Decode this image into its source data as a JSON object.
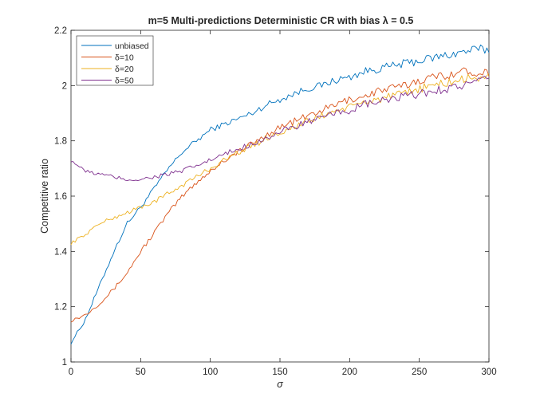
{
  "chart_data": {
    "type": "line",
    "title": "m=5 Multi-predictions Deterministic CR with bias  λ = 0.5",
    "xlabel": "σ",
    "ylabel": "Competitive ratio",
    "xlim": [
      0,
      300
    ],
    "ylim": [
      1,
      2.2
    ],
    "xticks": [
      0,
      50,
      100,
      150,
      200,
      250,
      300
    ],
    "yticks": [
      1,
      1.2,
      1.4,
      1.6,
      1.8,
      2,
      2.2
    ],
    "xtick_labels": [
      "0",
      "50",
      "100",
      "150",
      "200",
      "250",
      "300"
    ],
    "ytick_labels": [
      "1",
      "1.2",
      "1.4",
      "1.6",
      "1.8",
      "2",
      "2.2"
    ],
    "grid": false,
    "legend_position": "top-left",
    "series": [
      {
        "name": "unbiased",
        "color": "#0072BD",
        "x": [
          0,
          10,
          20,
          30,
          40,
          50,
          60,
          70,
          80,
          90,
          100,
          110,
          120,
          130,
          140,
          150,
          160,
          170,
          180,
          190,
          200,
          210,
          220,
          230,
          240,
          250,
          260,
          270,
          280,
          290,
          300
        ],
        "y": [
          1.07,
          1.15,
          1.27,
          1.39,
          1.5,
          1.56,
          1.63,
          1.7,
          1.76,
          1.8,
          1.84,
          1.86,
          1.88,
          1.9,
          1.93,
          1.95,
          1.97,
          1.99,
          2.0,
          2.02,
          2.03,
          2.05,
          2.06,
          2.07,
          2.08,
          2.09,
          2.1,
          2.11,
          2.12,
          2.13,
          2.13
        ]
      },
      {
        "name": "δ=10",
        "color": "#D95319",
        "x": [
          0,
          10,
          20,
          30,
          40,
          50,
          60,
          70,
          80,
          90,
          100,
          110,
          120,
          130,
          140,
          150,
          160,
          170,
          180,
          190,
          200,
          210,
          220,
          230,
          240,
          250,
          260,
          270,
          280,
          290,
          300
        ],
        "y": [
          1.15,
          1.17,
          1.21,
          1.26,
          1.32,
          1.4,
          1.47,
          1.54,
          1.6,
          1.65,
          1.69,
          1.73,
          1.76,
          1.79,
          1.82,
          1.85,
          1.87,
          1.89,
          1.91,
          1.93,
          1.95,
          1.96,
          1.98,
          1.99,
          2.0,
          2.02,
          2.03,
          2.04,
          2.05,
          2.05,
          2.05
        ]
      },
      {
        "name": "δ=20",
        "color": "#EDB120",
        "x": [
          0,
          10,
          20,
          30,
          40,
          50,
          60,
          70,
          80,
          90,
          100,
          110,
          120,
          130,
          140,
          150,
          160,
          170,
          180,
          190,
          200,
          210,
          220,
          230,
          240,
          250,
          260,
          270,
          280,
          290,
          300
        ],
        "y": [
          1.43,
          1.46,
          1.5,
          1.52,
          1.54,
          1.56,
          1.58,
          1.61,
          1.64,
          1.67,
          1.7,
          1.73,
          1.76,
          1.78,
          1.81,
          1.83,
          1.85,
          1.87,
          1.89,
          1.91,
          1.92,
          1.94,
          1.95,
          1.96,
          1.97,
          1.99,
          2.0,
          2.01,
          2.02,
          2.03,
          2.03
        ]
      },
      {
        "name": "δ=50",
        "color": "#7E2F8E",
        "x": [
          0,
          10,
          20,
          30,
          40,
          50,
          60,
          70,
          80,
          90,
          100,
          110,
          120,
          130,
          140,
          150,
          160,
          170,
          180,
          190,
          200,
          210,
          220,
          230,
          240,
          250,
          260,
          270,
          280,
          290,
          300
        ],
        "y": [
          1.73,
          1.69,
          1.68,
          1.67,
          1.66,
          1.66,
          1.67,
          1.68,
          1.69,
          1.71,
          1.73,
          1.75,
          1.77,
          1.79,
          1.81,
          1.83,
          1.85,
          1.87,
          1.88,
          1.9,
          1.91,
          1.93,
          1.94,
          1.95,
          1.96,
          1.97,
          1.98,
          1.99,
          2.0,
          2.01,
          2.02
        ]
      }
    ]
  }
}
